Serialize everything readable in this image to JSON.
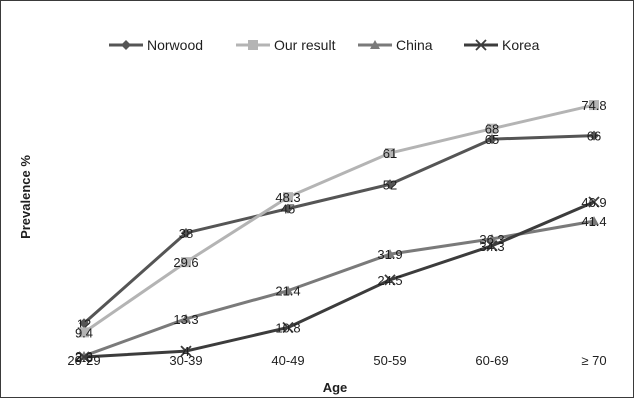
{
  "chart_data": {
    "type": "line",
    "title": "",
    "xlabel": "Age",
    "ylabel": "Prevalence %",
    "categories": [
      "20-29",
      "30-39",
      "40-49",
      "50-59",
      "60-69",
      "≥ 70"
    ],
    "ylim": [
      0,
      90
    ],
    "grid": false,
    "legend_position": "top",
    "series": [
      {
        "name": "Norwood",
        "values": [
          12,
          38,
          45,
          52,
          65,
          66
        ],
        "labels": [
          "12",
          "38",
          "45",
          "52",
          "65",
          "66"
        ],
        "color": "#555555",
        "marker": "diamond"
      },
      {
        "name": "Our result",
        "values": [
          9.4,
          29.6,
          48.3,
          61,
          68,
          74.8
        ],
        "labels": [
          "9.4",
          "29.6",
          "48.3",
          "61",
          "68",
          "74.8"
        ],
        "color": "#b4b4b4",
        "marker": "square"
      },
      {
        "name": "China",
        "values": [
          2.6,
          13.3,
          21.4,
          31.9,
          36.3,
          41.4
        ],
        "labels": [
          "2.6",
          "13.3",
          "21.4",
          "31.9",
          "36.3",
          "41.4"
        ],
        "color": "#7a7a7a",
        "marker": "triangle"
      },
      {
        "name": "Korea",
        "values": [
          2.3,
          4,
          10.8,
          24.5,
          34.3,
          46.9
        ],
        "labels": [
          "2.3",
          "4",
          "10.8",
          "24.5",
          "34.3",
          "46.9"
        ],
        "color": "#3c3c3c",
        "marker": "x"
      }
    ]
  }
}
